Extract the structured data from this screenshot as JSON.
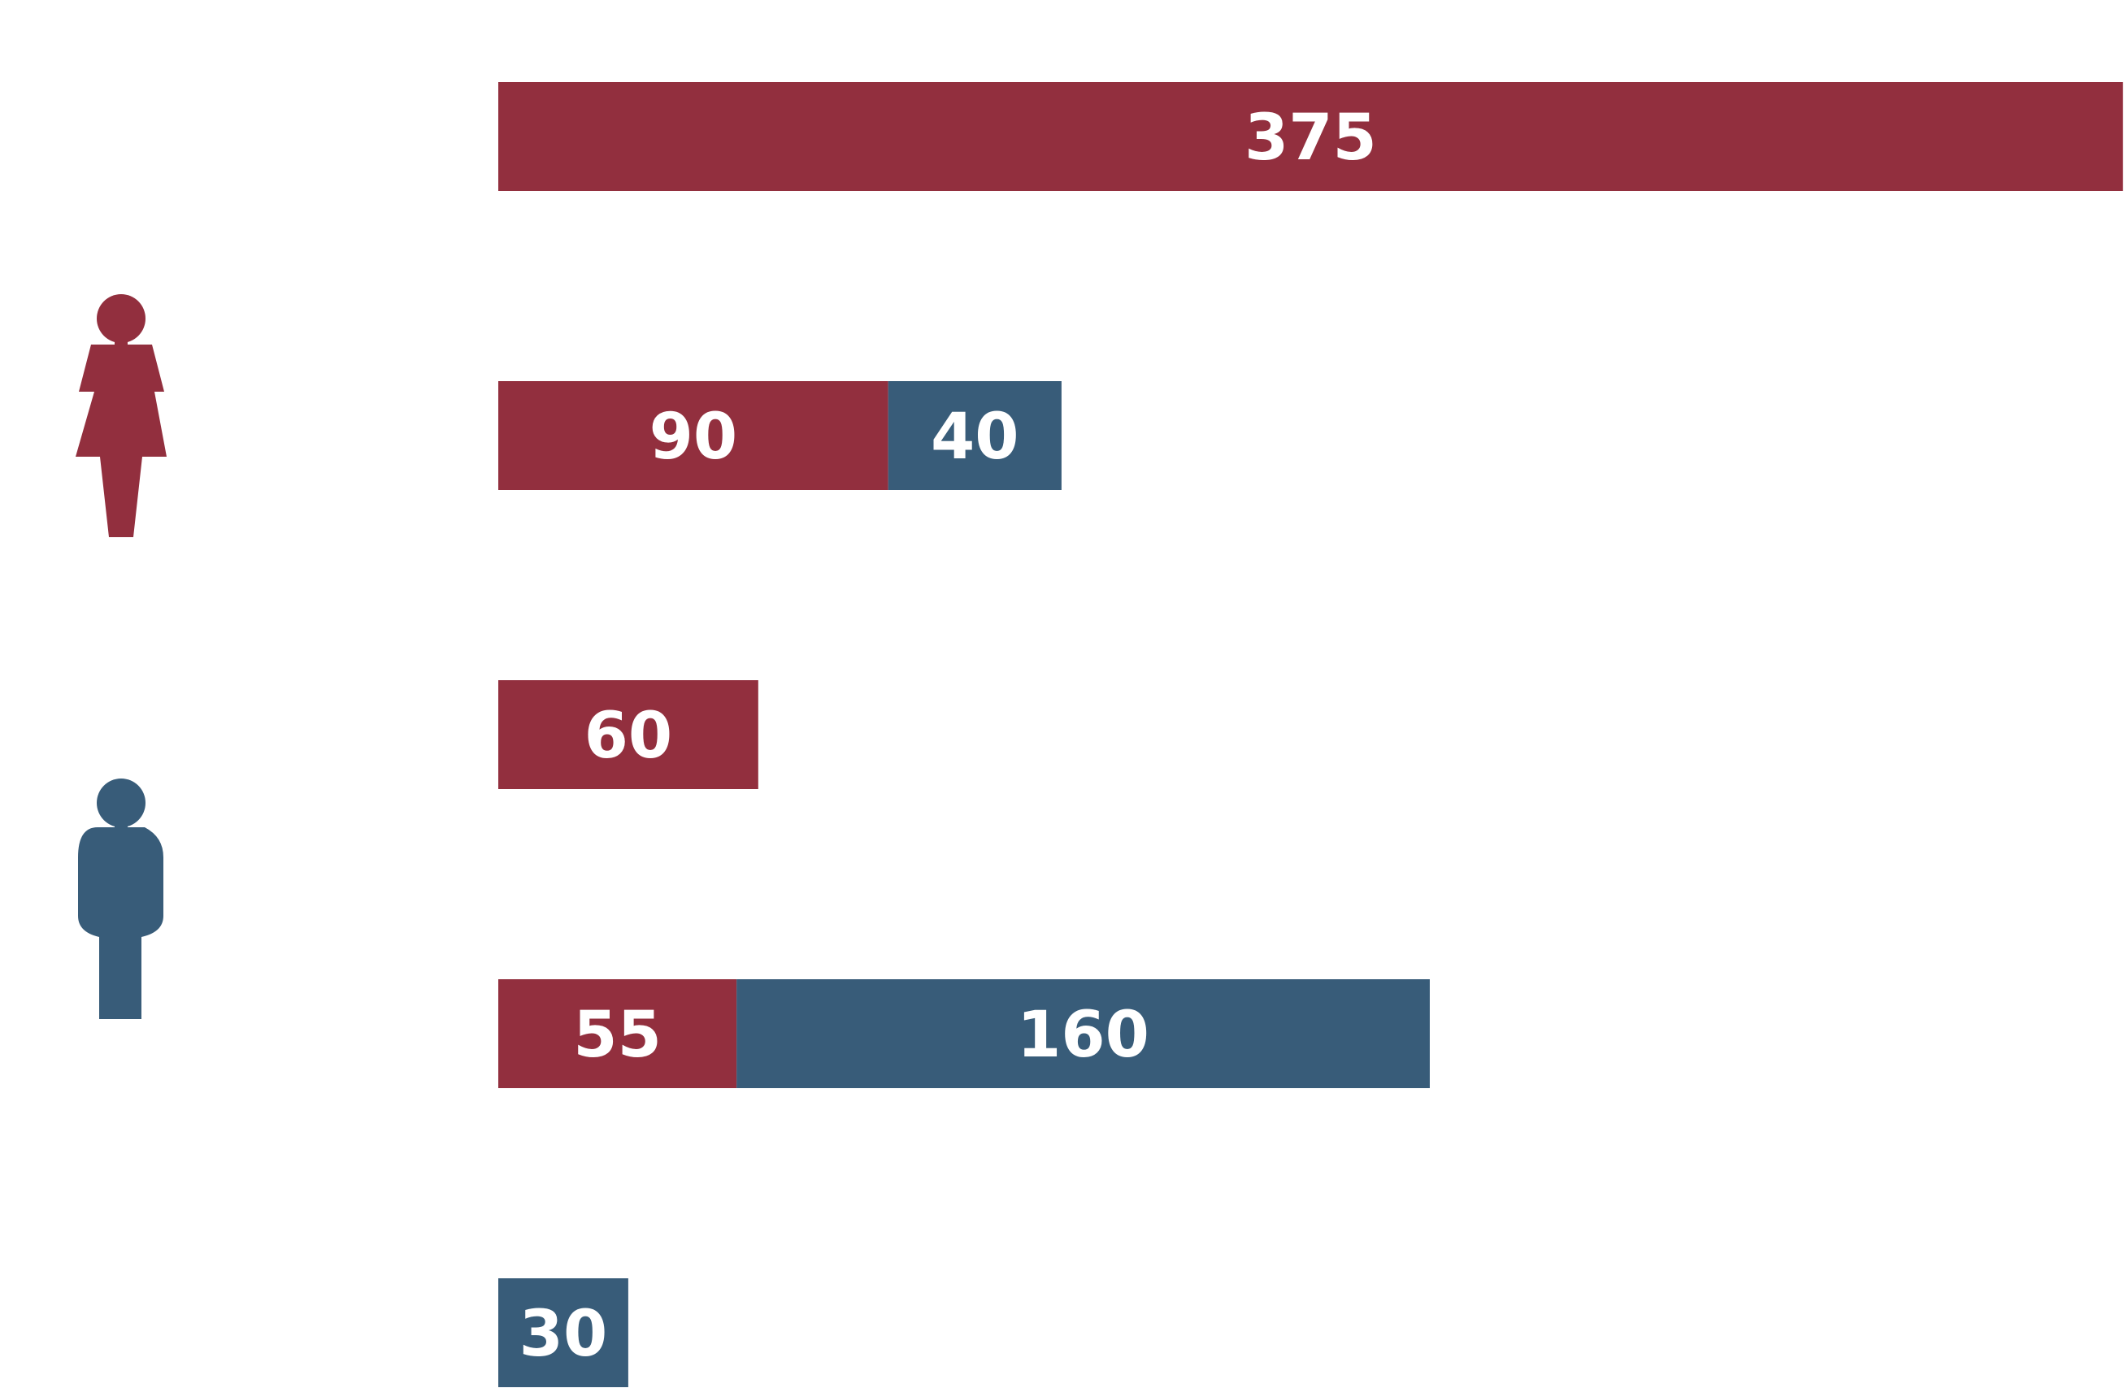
{
  "chart_data": {
    "type": "bar",
    "orientation": "horizontal",
    "stacked": true,
    "title": "",
    "xlabel": "",
    "ylabel": "",
    "categories": [
      "",
      "",
      "",
      "",
      ""
    ],
    "series": [
      {
        "color": "#922f3e",
        "icon": "female-figure-icon",
        "values": [
          375,
          90,
          60,
          55,
          0
        ]
      },
      {
        "color": "#385c79",
        "icon": "male-figure-icon",
        "values": [
          0,
          40,
          0,
          160,
          30
        ]
      }
    ],
    "xlim": [
      0,
      375
    ],
    "grid": false,
    "legend": "left, icons only"
  }
}
